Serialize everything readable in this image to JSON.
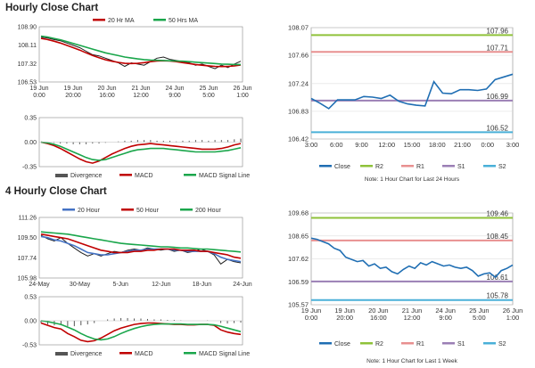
{
  "titles": {
    "hourly": "Hourly Close Chart",
    "four_hourly": "4 Hourly Close Chart"
  },
  "colors": {
    "price": "#1f1f1f",
    "ma_red": "#c00000",
    "ma_green": "#1aa64b",
    "ma_blue": "#4472c4",
    "close_blue": "#1f6eb3",
    "r2": "#8fc23a",
    "r1": "#e89090",
    "s1": "#9b7fb5",
    "s2": "#4ab0d8",
    "divergence": "#555555",
    "grid": "#d9d9d9"
  },
  "chart_data": [
    {
      "id": "hourly-price",
      "type": "line",
      "title": "Hourly Close Chart",
      "legend": [
        "20 Hr MA",
        "50 Hrs MA"
      ],
      "yticks": [
        "108.90",
        "108.11",
        "107.32",
        "106.53"
      ],
      "ylim": [
        106.53,
        108.9
      ],
      "xticks": [
        "19 Jun\n0:00",
        "19 Jun\n20:00",
        "20 Jun\n16:00",
        "21 Jun\n12:00",
        "24 Jun\n9:00",
        "25 Jun\n5:00",
        "26 Jun\n1:00"
      ],
      "series": [
        {
          "name": "Close",
          "values": [
            108.45,
            108.42,
            108.35,
            108.3,
            108.2,
            108.1,
            108.0,
            107.85,
            107.7,
            107.65,
            107.55,
            107.45,
            107.35,
            107.2,
            107.35,
            107.3,
            107.25,
            107.4,
            107.55,
            107.6,
            107.5,
            107.45,
            107.4,
            107.35,
            107.25,
            107.3,
            107.2,
            107.1,
            107.25,
            107.15,
            107.3,
            107.42
          ]
        },
        {
          "name": "20 Hr MA",
          "values": [
            108.4,
            108.35,
            108.28,
            108.2,
            108.1,
            108.0,
            107.9,
            107.78,
            107.67,
            107.57,
            107.48,
            107.42,
            107.37,
            107.33,
            107.32,
            107.33,
            107.36,
            107.4,
            107.43,
            107.44,
            107.43,
            107.4,
            107.36,
            107.32,
            107.28,
            107.25,
            107.22,
            107.2,
            107.19,
            107.2,
            107.22,
            107.26
          ]
        },
        {
          "name": "50 Hrs MA",
          "values": [
            108.5,
            108.46,
            108.4,
            108.34,
            108.26,
            108.18,
            108.1,
            108.02,
            107.94,
            107.86,
            107.78,
            107.72,
            107.66,
            107.6,
            107.56,
            107.52,
            107.49,
            107.47,
            107.46,
            107.45,
            107.44,
            107.43,
            107.42,
            107.4,
            107.38,
            107.36,
            107.34,
            107.32,
            107.3,
            107.29,
            107.28,
            107.28
          ]
        }
      ]
    },
    {
      "id": "hourly-macd",
      "type": "line",
      "legend": [
        "Divergence",
        "MACD",
        "MACD Signal Line"
      ],
      "yticks": [
        "0.35",
        "0.00",
        "-0.35"
      ],
      "ylim": [
        -0.35,
        0.35
      ],
      "series": [
        {
          "name": "Divergence",
          "values": [
            0.0,
            0.0,
            -0.01,
            -0.02,
            -0.02,
            -0.03,
            -0.03,
            -0.03,
            -0.02,
            -0.02,
            -0.01,
            0.0,
            0.01,
            0.02,
            0.02,
            0.03,
            0.03,
            0.03,
            0.02,
            0.02,
            0.02,
            0.01,
            0.02,
            0.02,
            0.03,
            0.03,
            0.02,
            0.03,
            0.03,
            0.03,
            0.04,
            0.05
          ]
        },
        {
          "name": "MACD",
          "values": [
            0.0,
            -0.02,
            -0.05,
            -0.09,
            -0.14,
            -0.19,
            -0.24,
            -0.28,
            -0.3,
            -0.27,
            -0.22,
            -0.17,
            -0.13,
            -0.09,
            -0.06,
            -0.04,
            -0.03,
            -0.02,
            -0.03,
            -0.04,
            -0.05,
            -0.06,
            -0.07,
            -0.08,
            -0.09,
            -0.1,
            -0.1,
            -0.1,
            -0.09,
            -0.07,
            -0.04,
            -0.02
          ]
        },
        {
          "name": "MACD Signal Line",
          "values": [
            0.0,
            -0.01,
            -0.03,
            -0.06,
            -0.1,
            -0.14,
            -0.18,
            -0.22,
            -0.25,
            -0.26,
            -0.25,
            -0.22,
            -0.19,
            -0.16,
            -0.13,
            -0.11,
            -0.1,
            -0.09,
            -0.09,
            -0.09,
            -0.1,
            -0.11,
            -0.12,
            -0.13,
            -0.14,
            -0.14,
            -0.14,
            -0.14,
            -0.13,
            -0.12,
            -0.1,
            -0.08
          ]
        }
      ]
    },
    {
      "id": "hourly-levels",
      "type": "line",
      "note": "Note: 1 Hour Chart for Last 24 Hours",
      "legend": [
        "Close",
        "R2",
        "R1",
        "S1",
        "S2"
      ],
      "yticks": [
        "108.07",
        "107.66",
        "107.24",
        "106.83",
        "106.42"
      ],
      "ylim": [
        106.42,
        108.07
      ],
      "xticks": [
        "3:00",
        "6:00",
        "9:00",
        "12:00",
        "15:00",
        "18:00",
        "21:00",
        "0:00",
        "3:00"
      ],
      "levels": {
        "R2": 107.96,
        "R1": 107.71,
        "S1": 106.99,
        "S2": 106.52
      },
      "level_labels": {
        "R2": "107.96",
        "R1": "107.71",
        "S1": "106.99",
        "S2": "106.52"
      },
      "series": [
        {
          "name": "Close",
          "values": [
            107.02,
            106.95,
            106.87,
            107.0,
            107.0,
            107.0,
            107.05,
            107.04,
            107.02,
            107.07,
            106.98,
            106.94,
            106.92,
            106.91,
            107.27,
            107.1,
            107.09,
            107.15,
            107.15,
            107.14,
            107.16,
            107.3,
            107.34,
            107.38
          ]
        }
      ]
    },
    {
      "id": "four-hourly-price",
      "type": "line",
      "title": "4 Hourly Close Chart",
      "legend": [
        "20 Hour",
        "50 Hour",
        "200 Hour"
      ],
      "yticks": [
        "111.26",
        "109.50",
        "107.74",
        "105.98"
      ],
      "ylim": [
        105.98,
        111.26
      ],
      "xticks": [
        "24-May",
        "30-May",
        "5-Jun",
        "12-Jun",
        "18-Jun",
        "24-Jun"
      ],
      "series": [
        {
          "name": "Close",
          "values": [
            109.7,
            109.4,
            109.2,
            109.5,
            109.0,
            108.6,
            108.2,
            107.9,
            108.1,
            107.9,
            108.1,
            108.3,
            108.2,
            108.4,
            108.5,
            108.4,
            108.6,
            108.5,
            108.4,
            108.5,
            108.3,
            108.4,
            108.2,
            108.3,
            108.5,
            108.3,
            108.0,
            107.2,
            107.6,
            107.4,
            107.3
          ]
        },
        {
          "name": "20 Hour",
          "values": [
            109.6,
            109.5,
            109.3,
            109.2,
            109.0,
            108.8,
            108.5,
            108.2,
            108.1,
            108.0,
            108.0,
            108.1,
            108.2,
            108.3,
            108.4,
            108.4,
            108.5,
            108.5,
            108.5,
            108.5,
            108.4,
            108.4,
            108.3,
            108.3,
            108.3,
            108.3,
            108.1,
            107.8,
            107.6,
            107.5,
            107.4
          ]
        },
        {
          "name": "50 Hour",
          "values": [
            109.8,
            109.7,
            109.6,
            109.5,
            109.4,
            109.2,
            109.0,
            108.8,
            108.6,
            108.4,
            108.3,
            108.2,
            108.2,
            108.2,
            108.3,
            108.3,
            108.4,
            108.4,
            108.5,
            108.5,
            108.5,
            108.4,
            108.4,
            108.4,
            108.3,
            108.3,
            108.2,
            108.1,
            108.0,
            107.8,
            107.7
          ]
        },
        {
          "name": "200 Hour",
          "values": [
            110.0,
            109.95,
            109.9,
            109.85,
            109.8,
            109.7,
            109.6,
            109.5,
            109.4,
            109.3,
            109.2,
            109.1,
            109.0,
            108.95,
            108.9,
            108.85,
            108.8,
            108.75,
            108.7,
            108.7,
            108.65,
            108.6,
            108.6,
            108.55,
            108.5,
            108.5,
            108.45,
            108.4,
            108.35,
            108.3,
            108.25
          ]
        }
      ]
    },
    {
      "id": "four-hourly-macd",
      "type": "line",
      "legend": [
        "Divergence",
        "MACD",
        "MACD Signal Line"
      ],
      "yticks": [
        "0.53",
        "0.00",
        "-0.53"
      ],
      "ylim": [
        -0.53,
        0.53
      ],
      "series": [
        {
          "name": "Divergence",
          "values": [
            -0.05,
            -0.08,
            -0.1,
            -0.1,
            -0.12,
            -0.12,
            -0.1,
            -0.08,
            -0.05,
            0.0,
            0.03,
            0.05,
            0.06,
            0.06,
            0.05,
            0.05,
            0.04,
            0.03,
            0.03,
            0.02,
            0.02,
            0.01,
            0.0,
            0.0,
            0.0,
            0.01,
            0.0,
            -0.05,
            -0.06,
            -0.05,
            -0.04
          ]
        },
        {
          "name": "MACD",
          "values": [
            -0.05,
            -0.1,
            -0.15,
            -0.18,
            -0.28,
            -0.35,
            -0.43,
            -0.46,
            -0.44,
            -0.38,
            -0.3,
            -0.22,
            -0.16,
            -0.12,
            -0.08,
            -0.06,
            -0.05,
            -0.05,
            -0.06,
            -0.07,
            -0.08,
            -0.08,
            -0.09,
            -0.09,
            -0.08,
            -0.08,
            -0.1,
            -0.2,
            -0.25,
            -0.28,
            -0.3
          ]
        },
        {
          "name": "MACD Signal Line",
          "values": [
            0.0,
            -0.02,
            -0.05,
            -0.08,
            -0.14,
            -0.2,
            -0.28,
            -0.35,
            -0.4,
            -0.42,
            -0.4,
            -0.35,
            -0.28,
            -0.22,
            -0.17,
            -0.13,
            -0.1,
            -0.08,
            -0.07,
            -0.07,
            -0.07,
            -0.07,
            -0.08,
            -0.08,
            -0.08,
            -0.08,
            -0.09,
            -0.12,
            -0.16,
            -0.2,
            -0.24
          ]
        }
      ]
    },
    {
      "id": "four-hourly-levels",
      "type": "line",
      "note": "Note: 1 Hour Chart for Last 1 Week",
      "legend": [
        "Close",
        "R2",
        "R1",
        "S1",
        "S2"
      ],
      "yticks": [
        "109.68",
        "108.65",
        "107.62",
        "106.59",
        "105.57"
      ],
      "ylim": [
        105.57,
        109.68
      ],
      "xticks": [
        "19 Jun\n0:00",
        "19 Jun\n20:00",
        "20 Jun\n16:00",
        "21 Jun\n12:00",
        "24 Jun\n9:00",
        "25 Jun\n5:00",
        "26 Jun\n1:00"
      ],
      "levels": {
        "R2": 109.46,
        "R1": 108.45,
        "S1": 106.61,
        "S2": 105.78
      },
      "level_labels": {
        "R2": "109.46",
        "R1": "108.45",
        "S1": "106.61",
        "S2": "105.78"
      },
      "series": [
        {
          "name": "Close",
          "values": [
            108.55,
            108.5,
            108.4,
            108.3,
            108.1,
            108.0,
            107.7,
            107.6,
            107.5,
            107.55,
            107.3,
            107.4,
            107.2,
            107.25,
            107.05,
            106.95,
            107.15,
            107.3,
            107.2,
            107.45,
            107.35,
            107.5,
            107.4,
            107.3,
            107.35,
            107.25,
            107.2,
            107.25,
            107.1,
            106.85,
            106.95,
            107.0,
            106.8,
            107.1,
            107.2,
            107.35
          ]
        }
      ]
    }
  ]
}
